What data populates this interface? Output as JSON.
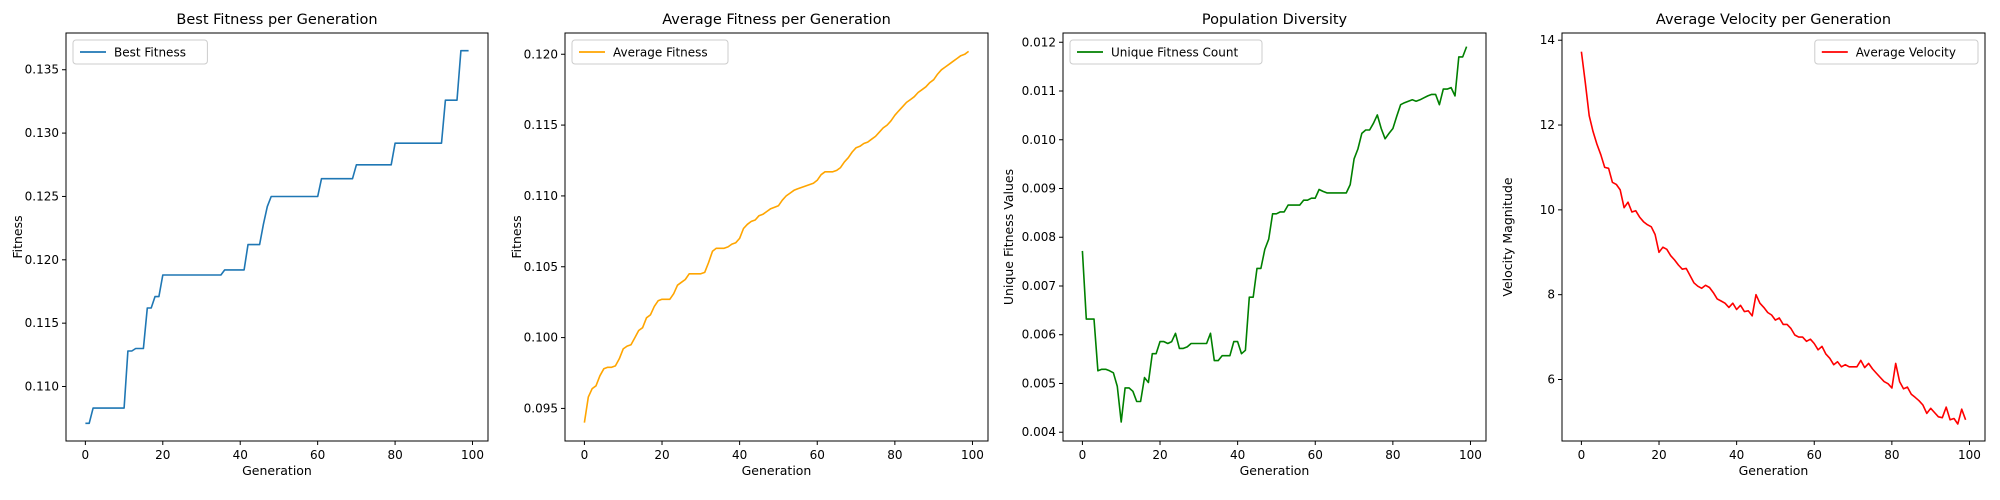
{
  "chart_data": [
    {
      "type": "line",
      "title": "Best Fitness per Generation",
      "xlabel": "Generation",
      "ylabel": "Fitness",
      "xlim": [
        -5,
        104
      ],
      "ylim": [
        0.1057,
        0.1379
      ],
      "xticks": [
        0,
        20,
        40,
        60,
        80,
        100
      ],
      "xtick_labels": [
        "0",
        "20",
        "40",
        "60",
        "80",
        "100"
      ],
      "yticks": [
        0.11,
        0.115,
        0.12,
        0.125,
        0.13,
        0.135
      ],
      "ytick_labels": [
        "0.110",
        "0.115",
        "0.120",
        "0.125",
        "0.130",
        "0.135"
      ],
      "legend": "upper-left",
      "grid": false,
      "series": [
        {
          "name": "Best Fitness",
          "color": "#1f77b4",
          "x": [
            0,
            1,
            2,
            3,
            4,
            5,
            6,
            7,
            8,
            9,
            10,
            11,
            12,
            13,
            14,
            15,
            16,
            17,
            18,
            19,
            20,
            21,
            22,
            23,
            24,
            25,
            26,
            27,
            28,
            29,
            30,
            31,
            32,
            33,
            34,
            35,
            36,
            37,
            38,
            39,
            40,
            41,
            42,
            43,
            44,
            45,
            46,
            47,
            48,
            49,
            50,
            51,
            52,
            53,
            54,
            55,
            56,
            57,
            58,
            59,
            60,
            61,
            62,
            63,
            64,
            65,
            66,
            67,
            68,
            69,
            70,
            71,
            72,
            73,
            74,
            75,
            76,
            77,
            78,
            79,
            80,
            81,
            82,
            83,
            84,
            85,
            86,
            87,
            88,
            89,
            90,
            91,
            92,
            93,
            94,
            95,
            96,
            97,
            98,
            99
          ],
          "values": [
            0.1071,
            0.1071,
            0.1083,
            0.1083,
            0.1083,
            0.1083,
            0.1083,
            0.1083,
            0.1083,
            0.1083,
            0.1083,
            0.1128,
            0.1128,
            0.113,
            0.113,
            0.113,
            0.1162,
            0.1162,
            0.1171,
            0.1171,
            0.1188,
            0.1188,
            0.1188,
            0.1188,
            0.1188,
            0.1188,
            0.1188,
            0.1188,
            0.1188,
            0.1188,
            0.1188,
            0.1188,
            0.1188,
            0.1188,
            0.1188,
            0.1188,
            0.1192,
            0.1192,
            0.1192,
            0.1192,
            0.1192,
            0.1192,
            0.1212,
            0.1212,
            0.1212,
            0.1212,
            0.1228,
            0.1242,
            0.125,
            0.125,
            0.125,
            0.125,
            0.125,
            0.125,
            0.125,
            0.125,
            0.125,
            0.125,
            0.125,
            0.125,
            0.125,
            0.1264,
            0.1264,
            0.1264,
            0.1264,
            0.1264,
            0.1264,
            0.1264,
            0.1264,
            0.1264,
            0.1275,
            0.1275,
            0.1275,
            0.1275,
            0.1275,
            0.1275,
            0.1275,
            0.1275,
            0.1275,
            0.1275,
            0.1292,
            0.1292,
            0.1292,
            0.1292,
            0.1292,
            0.1292,
            0.1292,
            0.1292,
            0.1292,
            0.1292,
            0.1292,
            0.1292,
            0.1292,
            0.1326,
            0.1326,
            0.1326,
            0.1326,
            0.1365,
            0.1365,
            0.1365
          ]
        }
      ]
    },
    {
      "type": "line",
      "title": "Average Fitness per Generation",
      "xlabel": "Generation",
      "ylabel": "Fitness",
      "xlim": [
        -5,
        104
      ],
      "ylim": [
        0.0927,
        0.1215
      ],
      "xticks": [
        0,
        20,
        40,
        60,
        80,
        100
      ],
      "xtick_labels": [
        "0",
        "20",
        "40",
        "60",
        "80",
        "100"
      ],
      "yticks": [
        0.095,
        0.1,
        0.105,
        0.11,
        0.115,
        0.12
      ],
      "ytick_labels": [
        "0.095",
        "0.100",
        "0.105",
        "0.110",
        "0.115",
        "0.120"
      ],
      "legend": "upper-left",
      "grid": false,
      "series": [
        {
          "name": "Average Fitness",
          "color": "#ffa500",
          "x": [
            0,
            1,
            2,
            3,
            4,
            5,
            6,
            7,
            8,
            9,
            10,
            11,
            12,
            13,
            14,
            15,
            16,
            17,
            18,
            19,
            20,
            21,
            22,
            23,
            24,
            25,
            26,
            27,
            28,
            29,
            30,
            31,
            32,
            33,
            34,
            35,
            36,
            37,
            38,
            39,
            40,
            41,
            42,
            43,
            44,
            45,
            46,
            47,
            48,
            49,
            50,
            51,
            52,
            53,
            54,
            55,
            56,
            57,
            58,
            59,
            60,
            61,
            62,
            63,
            64,
            65,
            66,
            67,
            68,
            69,
            70,
            71,
            72,
            73,
            74,
            75,
            76,
            77,
            78,
            79,
            80,
            81,
            82,
            83,
            84,
            85,
            86,
            87,
            88,
            89,
            90,
            91,
            92,
            93,
            94,
            95,
            96,
            97,
            98,
            99
          ],
          "values": [
            0.094,
            0.0958,
            0.0964,
            0.0966,
            0.0973,
            0.0978,
            0.0979,
            0.0979,
            0.098,
            0.0985,
            0.0992,
            0.0994,
            0.0995,
            0.1,
            0.1005,
            0.1007,
            0.1014,
            0.1016,
            0.1022,
            0.1026,
            0.1027,
            0.1027,
            0.1027,
            0.1031,
            0.1037,
            0.1039,
            0.1041,
            0.1045,
            0.1045,
            0.1045,
            0.1045,
            0.1046,
            0.1053,
            0.1061,
            0.1063,
            0.1063,
            0.1063,
            0.1064,
            0.1066,
            0.1067,
            0.107,
            0.1077,
            0.108,
            0.1082,
            0.1083,
            0.1086,
            0.1087,
            0.1089,
            0.1091,
            0.1092,
            0.1093,
            0.1097,
            0.11,
            0.1102,
            0.1104,
            0.1105,
            0.1106,
            0.1107,
            0.1108,
            0.1109,
            0.1111,
            0.1115,
            0.1117,
            0.1117,
            0.1117,
            0.1118,
            0.112,
            0.1124,
            0.1127,
            0.1131,
            0.1134,
            0.1135,
            0.1137,
            0.1138,
            0.114,
            0.1142,
            0.1145,
            0.1148,
            0.115,
            0.1153,
            0.1157,
            0.116,
            0.1163,
            0.1166,
            0.1168,
            0.117,
            0.1173,
            0.1175,
            0.1177,
            0.118,
            0.1182,
            0.1186,
            0.1189,
            0.1191,
            0.1193,
            0.1195,
            0.1197,
            0.1199,
            0.12,
            0.1202
          ]
        }
      ]
    },
    {
      "type": "line",
      "title": "Population Diversity",
      "xlabel": "Generation",
      "ylabel": "Unique Fitness Values",
      "xlim": [
        -5,
        104
      ],
      "ylim": [
        0.00382,
        0.01219
      ],
      "xticks": [
        0,
        20,
        40,
        60,
        80,
        100
      ],
      "xtick_labels": [
        "0",
        "20",
        "40",
        "60",
        "80",
        "100"
      ],
      "yticks": [
        0.004,
        0.005,
        0.006,
        0.007,
        0.008,
        0.009,
        0.01,
        0.011,
        0.012
      ],
      "ytick_labels": [
        "0.004",
        "0.005",
        "0.006",
        "0.007",
        "0.008",
        "0.009",
        "0.010",
        "0.011",
        "0.012"
      ],
      "legend": "upper-left",
      "grid": false,
      "series": [
        {
          "name": "Unique Fitness Count",
          "color": "#008000",
          "x": [
            0,
            1,
            2,
            3,
            4,
            5,
            6,
            7,
            8,
            9,
            10,
            11,
            12,
            13,
            14,
            15,
            16,
            17,
            18,
            19,
            20,
            21,
            22,
            23,
            24,
            25,
            26,
            27,
            28,
            29,
            30,
            31,
            32,
            33,
            34,
            35,
            36,
            37,
            38,
            39,
            40,
            41,
            42,
            43,
            44,
            45,
            46,
            47,
            48,
            49,
            50,
            51,
            52,
            53,
            54,
            55,
            56,
            57,
            58,
            59,
            60,
            61,
            62,
            63,
            64,
            65,
            66,
            67,
            68,
            69,
            70,
            71,
            72,
            73,
            74,
            75,
            76,
            77,
            78,
            79,
            80,
            81,
            82,
            83,
            84,
            85,
            86,
            87,
            88,
            89,
            90,
            91,
            92,
            93,
            94,
            95,
            96,
            97,
            98,
            99
          ],
          "values": [
            0.00772,
            0.00632,
            0.00632,
            0.00632,
            0.00526,
            0.00529,
            0.00529,
            0.00526,
            0.00522,
            0.00494,
            0.00421,
            0.00491,
            0.00491,
            0.00484,
            0.00463,
            0.00463,
            0.00512,
            0.00502,
            0.00561,
            0.00561,
            0.00586,
            0.00586,
            0.00582,
            0.00586,
            0.00603,
            0.00572,
            0.00572,
            0.00575,
            0.00582,
            0.00582,
            0.00582,
            0.00582,
            0.00582,
            0.00603,
            0.00547,
            0.00547,
            0.00557,
            0.00557,
            0.00557,
            0.00586,
            0.00586,
            0.00561,
            0.00568,
            0.00677,
            0.00677,
            0.00736,
            0.00736,
            0.00775,
            0.00796,
            0.00848,
            0.00848,
            0.00852,
            0.00852,
            0.00866,
            0.00866,
            0.00866,
            0.00866,
            0.00876,
            0.00876,
            0.0088,
            0.0088,
            0.00898,
            0.00894,
            0.00891,
            0.00891,
            0.00891,
            0.00891,
            0.00891,
            0.00891,
            0.00908,
            0.00961,
            0.00981,
            0.01013,
            0.0102,
            0.0102,
            0.01034,
            0.01051,
            0.01023,
            0.01002,
            0.01013,
            0.01023,
            0.01048,
            0.01072,
            0.01076,
            0.01079,
            0.01082,
            0.01079,
            0.01082,
            0.01086,
            0.0109,
            0.01093,
            0.01093,
            0.01072,
            0.01104,
            0.01104,
            0.01107,
            0.0109,
            0.0117,
            0.0117,
            0.01191
          ]
        }
      ]
    },
    {
      "type": "line",
      "title": "Average Velocity per Generation",
      "xlabel": "Generation",
      "ylabel": "Velocity Magnitude",
      "xlim": [
        -5,
        104
      ],
      "ylim": [
        4.55,
        14.17
      ],
      "xticks": [
        0,
        20,
        40,
        60,
        80,
        100
      ],
      "xtick_labels": [
        "0",
        "20",
        "40",
        "60",
        "80",
        "100"
      ],
      "yticks": [
        6,
        8,
        10,
        12,
        14
      ],
      "ytick_labels": [
        "6",
        "8",
        "10",
        "12",
        "14"
      ],
      "legend": "upper-right",
      "grid": false,
      "series": [
        {
          "name": "Average Velocity",
          "color": "#ff0000",
          "x": [
            0,
            1,
            2,
            3,
            4,
            5,
            6,
            7,
            8,
            9,
            10,
            11,
            12,
            13,
            14,
            15,
            16,
            17,
            18,
            19,
            20,
            21,
            22,
            23,
            24,
            25,
            26,
            27,
            28,
            29,
            30,
            31,
            32,
            33,
            34,
            35,
            36,
            37,
            38,
            39,
            40,
            41,
            42,
            43,
            44,
            45,
            46,
            47,
            48,
            49,
            50,
            51,
            52,
            53,
            54,
            55,
            56,
            57,
            58,
            59,
            60,
            61,
            62,
            63,
            64,
            65,
            66,
            67,
            68,
            69,
            70,
            71,
            72,
            73,
            74,
            75,
            76,
            77,
            78,
            79,
            80,
            81,
            82,
            83,
            84,
            85,
            86,
            87,
            88,
            89,
            90,
            91,
            92,
            93,
            94,
            95,
            96,
            97,
            98,
            99
          ],
          "values": [
            13.73,
            13.0,
            12.22,
            11.85,
            11.55,
            11.3,
            11.0,
            10.98,
            10.65,
            10.6,
            10.47,
            10.05,
            10.18,
            9.95,
            9.98,
            9.83,
            9.72,
            9.65,
            9.6,
            9.42,
            9.0,
            9.12,
            9.07,
            8.92,
            8.82,
            8.7,
            8.6,
            8.62,
            8.45,
            8.28,
            8.2,
            8.15,
            8.22,
            8.17,
            8.05,
            7.9,
            7.85,
            7.8,
            7.7,
            7.8,
            7.65,
            7.75,
            7.6,
            7.62,
            7.5,
            8.0,
            7.8,
            7.7,
            7.58,
            7.52,
            7.4,
            7.45,
            7.3,
            7.3,
            7.2,
            7.05,
            7.0,
            7.0,
            6.9,
            6.95,
            6.85,
            6.7,
            6.78,
            6.6,
            6.5,
            6.35,
            6.42,
            6.3,
            6.35,
            6.3,
            6.3,
            6.3,
            6.45,
            6.28,
            6.38,
            6.25,
            6.15,
            6.05,
            5.95,
            5.9,
            5.8,
            6.38,
            5.95,
            5.78,
            5.82,
            5.65,
            5.58,
            5.5,
            5.4,
            5.2,
            5.32,
            5.22,
            5.12,
            5.1,
            5.35,
            5.05,
            5.08,
            4.95,
            5.3,
            5.05
          ]
        }
      ]
    }
  ]
}
